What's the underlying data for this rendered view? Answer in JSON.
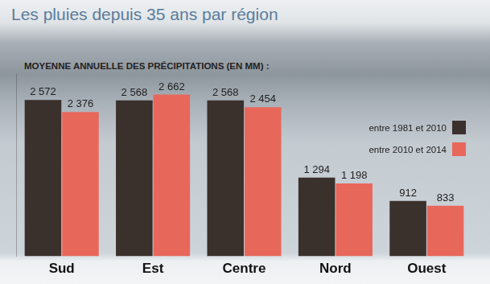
{
  "chart_data": {
    "type": "bar",
    "title": "Les pluies depuis 35 ans par région",
    "subtitle": "MOYENNE ANNUELLE DES PRÉCIPITATIONS (EN MM) :",
    "categories": [
      "Sud",
      "Est",
      "Centre",
      "Nord",
      "Ouest"
    ],
    "series": [
      {
        "name": "entre 1981 et 2010",
        "color": "#3a302c",
        "values": [
          2572,
          2568,
          2568,
          1294,
          912
        ],
        "value_labels": [
          "2 572",
          "2 568",
          "2 568",
          "1 294",
          "912"
        ]
      },
      {
        "name": "entre 2010 et 2014",
        "color": "#e8675b",
        "values": [
          2376,
          2662,
          2454,
          1198,
          833
        ],
        "value_labels": [
          "2 376",
          "2 662",
          "2 454",
          "1 198",
          "833"
        ]
      }
    ],
    "ylim": [
      0,
      3000
    ],
    "grid": false,
    "legend": "top right",
    "data_labels": true,
    "tick_labels": "x"
  }
}
